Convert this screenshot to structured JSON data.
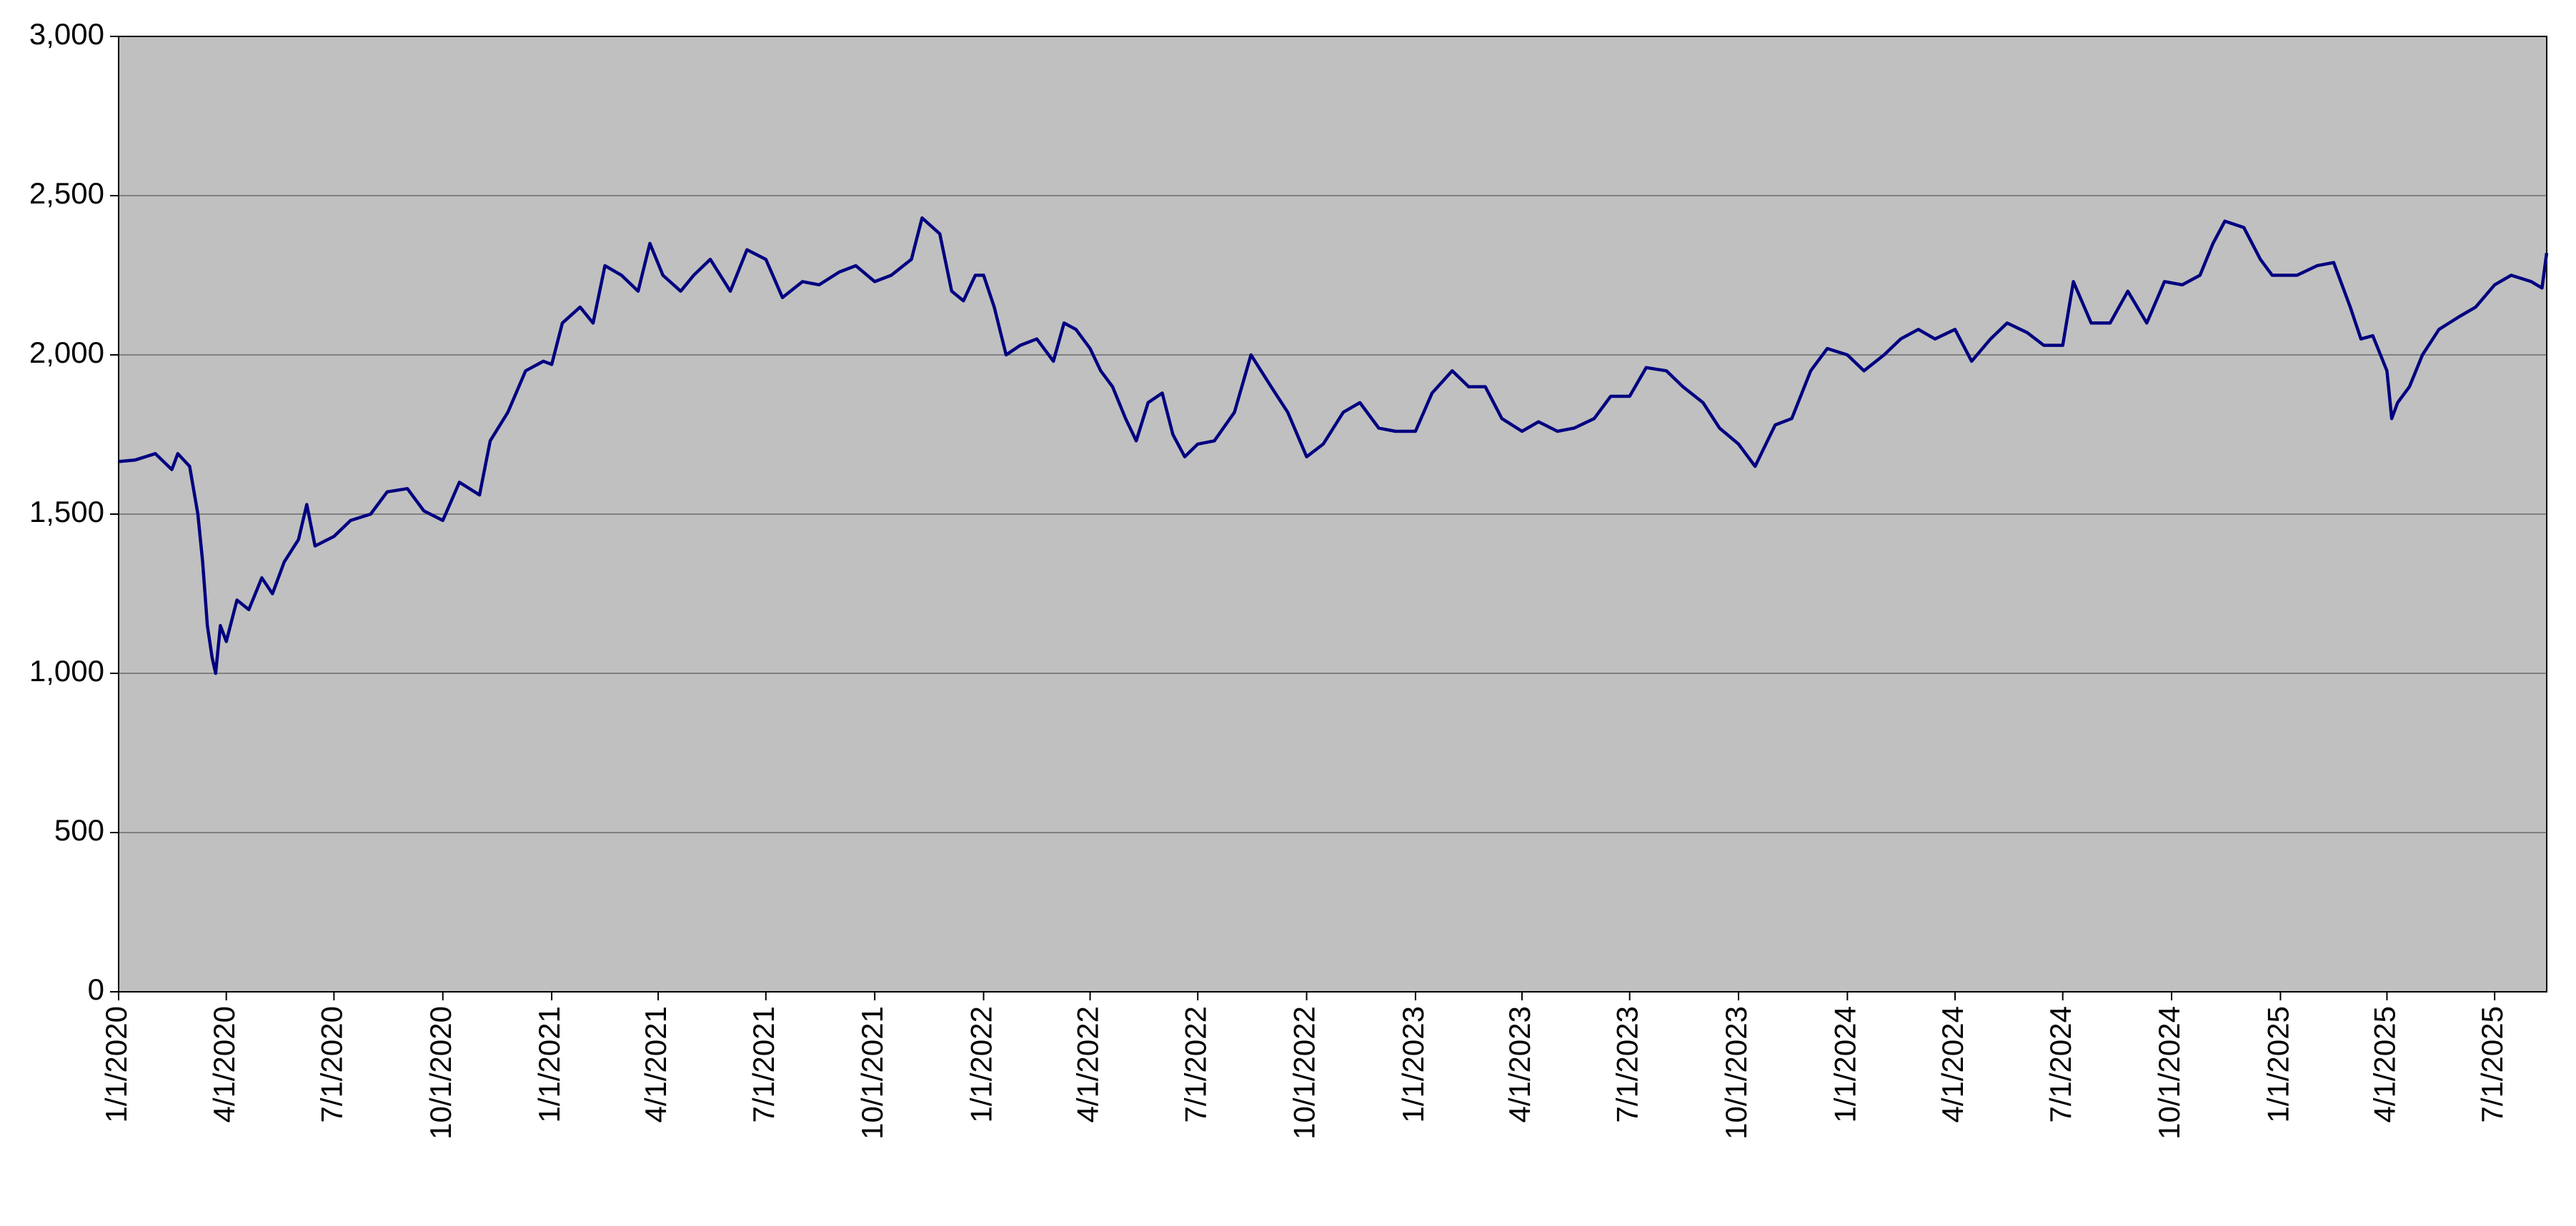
{
  "chart_data": {
    "type": "line",
    "color": "#000080",
    "plot_background": "#c0c0c0",
    "grid": true,
    "xlim": [
      "2020-01-01",
      "2025-08-14"
    ],
    "xticks": [
      {
        "value": "2020-01-01",
        "label": "1/1/2020"
      },
      {
        "value": "2020-04-01",
        "label": "4/1/2020"
      },
      {
        "value": "2020-07-01",
        "label": "7/1/2020"
      },
      {
        "value": "2020-10-01",
        "label": "10/1/2020"
      },
      {
        "value": "2021-01-01",
        "label": "1/1/2021"
      },
      {
        "value": "2021-04-01",
        "label": "4/1/2021"
      },
      {
        "value": "2021-07-01",
        "label": "7/1/2021"
      },
      {
        "value": "2021-10-01",
        "label": "10/1/2021"
      },
      {
        "value": "2022-01-01",
        "label": "1/1/2022"
      },
      {
        "value": "2022-04-01",
        "label": "4/1/2022"
      },
      {
        "value": "2022-07-01",
        "label": "7/1/2022"
      },
      {
        "value": "2022-10-01",
        "label": "10/1/2022"
      },
      {
        "value": "2023-01-01",
        "label": "1/1/2023"
      },
      {
        "value": "2023-04-01",
        "label": "4/1/2023"
      },
      {
        "value": "2023-07-01",
        "label": "7/1/2023"
      },
      {
        "value": "2023-10-01",
        "label": "10/1/2023"
      },
      {
        "value": "2024-01-01",
        "label": "1/1/2024"
      },
      {
        "value": "2024-04-01",
        "label": "4/1/2024"
      },
      {
        "value": "2024-07-01",
        "label": "7/1/2024"
      },
      {
        "value": "2024-10-01",
        "label": "10/1/2024"
      },
      {
        "value": "2025-01-01",
        "label": "1/1/2025"
      },
      {
        "value": "2025-04-01",
        "label": "4/1/2025"
      },
      {
        "value": "2025-07-01",
        "label": "7/1/2025"
      }
    ],
    "ylim": [
      0,
      3000
    ],
    "yticks": [
      0,
      500,
      {
        "value": 1000,
        "label": "1,000"
      },
      {
        "value": 1500,
        "label": "1,500"
      },
      {
        "value": 2000,
        "label": "2,000"
      },
      {
        "value": 2500,
        "label": "2,500"
      },
      {
        "value": 3000,
        "label": "3,000"
      }
    ],
    "x": [
      "2020-01-01",
      "2020-01-15",
      "2020-02-01",
      "2020-02-15",
      "2020-02-20",
      "2020-03-01",
      "2020-03-08",
      "2020-03-12",
      "2020-03-16",
      "2020-03-20",
      "2020-03-23",
      "2020-03-27",
      "2020-04-01",
      "2020-04-10",
      "2020-04-20",
      "2020-05-01",
      "2020-05-10",
      "2020-05-20",
      "2020-06-01",
      "2020-06-08",
      "2020-06-15",
      "2020-07-01",
      "2020-07-15",
      "2020-08-01",
      "2020-08-15",
      "2020-09-01",
      "2020-09-15",
      "2020-10-01",
      "2020-10-15",
      "2020-11-01",
      "2020-11-10",
      "2020-11-25",
      "2020-12-10",
      "2020-12-25",
      "2021-01-01",
      "2021-01-10",
      "2021-01-25",
      "2021-02-05",
      "2021-02-15",
      "2021-03-01",
      "2021-03-15",
      "2021-03-25",
      "2021-04-05",
      "2021-04-20",
      "2021-05-01",
      "2021-05-15",
      "2021-06-01",
      "2021-06-15",
      "2021-07-01",
      "2021-07-15",
      "2021-08-01",
      "2021-08-15",
      "2021-09-01",
      "2021-09-15",
      "2021-10-01",
      "2021-10-15",
      "2021-11-01",
      "2021-11-10",
      "2021-11-25",
      "2021-12-05",
      "2021-12-15",
      "2021-12-25",
      "2022-01-01",
      "2022-01-10",
      "2022-01-20",
      "2022-02-01",
      "2022-02-15",
      "2022-03-01",
      "2022-03-10",
      "2022-03-20",
      "2022-04-01",
      "2022-04-10",
      "2022-04-20",
      "2022-05-01",
      "2022-05-10",
      "2022-05-20",
      "2022-06-01",
      "2022-06-10",
      "2022-06-20",
      "2022-07-01",
      "2022-07-15",
      "2022-08-01",
      "2022-08-15",
      "2022-09-01",
      "2022-09-15",
      "2022-10-01",
      "2022-10-15",
      "2022-11-01",
      "2022-11-15",
      "2022-12-01",
      "2022-12-15",
      "2023-01-01",
      "2023-01-15",
      "2023-02-01",
      "2023-02-15",
      "2023-03-01",
      "2023-03-15",
      "2023-04-01",
      "2023-04-15",
      "2023-05-01",
      "2023-05-15",
      "2023-06-01",
      "2023-06-15",
      "2023-07-01",
      "2023-07-15",
      "2023-08-01",
      "2023-08-15",
      "2023-09-01",
      "2023-09-15",
      "2023-10-01",
      "2023-10-15",
      "2023-11-01",
      "2023-11-15",
      "2023-12-01",
      "2023-12-15",
      "2024-01-01",
      "2024-01-15",
      "2024-02-01",
      "2024-02-15",
      "2024-03-01",
      "2024-03-15",
      "2024-04-01",
      "2024-04-15",
      "2024-05-01",
      "2024-05-15",
      "2024-06-01",
      "2024-06-15",
      "2024-07-01",
      "2024-07-10",
      "2024-07-25",
      "2024-08-10",
      "2024-08-25",
      "2024-09-10",
      "2024-09-25",
      "2024-10-10",
      "2024-10-25",
      "2024-11-05",
      "2024-11-15",
      "2024-12-01",
      "2024-12-15",
      "2024-12-25",
      "2025-01-01",
      "2025-01-15",
      "2025-02-01",
      "2025-02-15",
      "2025-03-01",
      "2025-03-10",
      "2025-03-20",
      "2025-04-01",
      "2025-04-05",
      "2025-04-10",
      "2025-04-20",
      "2025-05-01",
      "2025-05-15",
      "2025-06-01",
      "2025-06-15",
      "2025-07-01",
      "2025-07-15",
      "2025-08-01",
      "2025-08-10",
      "2025-08-14"
    ],
    "values": [
      1665,
      1670,
      1690,
      1640,
      1690,
      1650,
      1500,
      1350,
      1150,
      1050,
      1000,
      1150,
      1100,
      1230,
      1200,
      1300,
      1250,
      1350,
      1420,
      1530,
      1400,
      1430,
      1480,
      1500,
      1570,
      1580,
      1510,
      1480,
      1600,
      1560,
      1730,
      1820,
      1950,
      1980,
      1970,
      2100,
      2150,
      2100,
      2280,
      2250,
      2200,
      2350,
      2250,
      2200,
      2250,
      2300,
      2200,
      2330,
      2300,
      2180,
      2230,
      2220,
      2260,
      2280,
      2230,
      2250,
      2300,
      2430,
      2380,
      2200,
      2170,
      2250,
      2250,
      2150,
      2000,
      2030,
      2050,
      1980,
      2100,
      2080,
      2020,
      1950,
      1900,
      1800,
      1730,
      1850,
      1880,
      1750,
      1680,
      1720,
      1730,
      1820,
      2000,
      1900,
      1820,
      1680,
      1720,
      1820,
      1850,
      1770,
      1760,
      1760,
      1880,
      1950,
      1900,
      1900,
      1800,
      1760,
      1790,
      1760,
      1770,
      1800,
      1870,
      1870,
      1960,
      1950,
      1900,
      1850,
      1770,
      1720,
      1650,
      1780,
      1800,
      1950,
      2020,
      2000,
      1950,
      2000,
      2050,
      2080,
      2050,
      2080,
      1980,
      2050,
      2100,
      2070,
      2030,
      2030,
      2230,
      2100,
      2100,
      2200,
      2100,
      2230,
      2220,
      2250,
      2350,
      2420,
      2400,
      2300,
      2250,
      2250,
      2250,
      2280,
      2290,
      2150,
      2050,
      2060,
      1950,
      1800,
      1850,
      1900,
      2000,
      2080,
      2120,
      2150,
      2220,
      2250,
      2230,
      2210,
      2320
    ]
  }
}
